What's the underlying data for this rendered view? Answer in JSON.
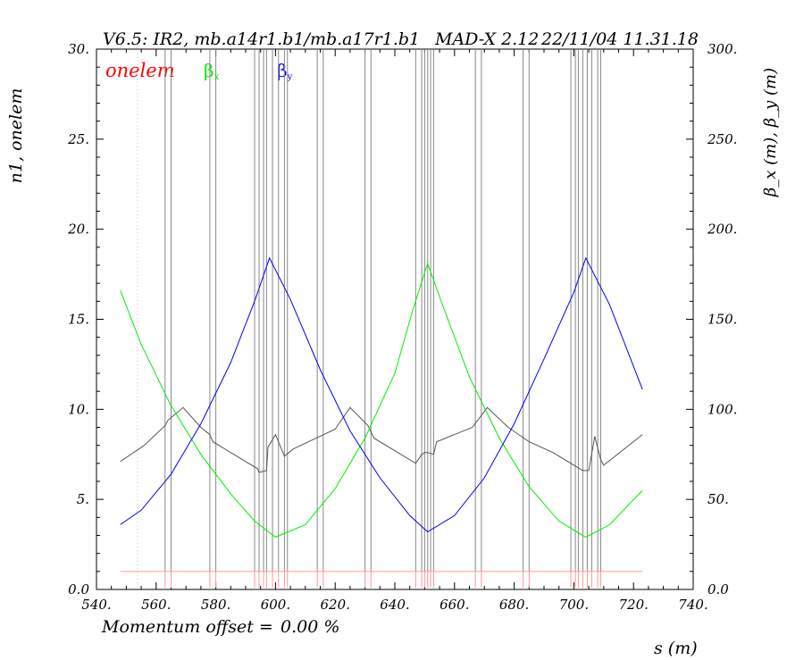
{
  "header": {
    "version": "V6.5: IR2, mb.a14r1.b1/mb.a17r1.b1",
    "program": "MAD-X 2.12",
    "timestamp": "22/11/04 11.31.18"
  },
  "footer": {
    "momentum_label": "Momentum offset =",
    "momentum_value": "0.00 %"
  },
  "colors": {
    "onelem": "#ff0000",
    "betx": "#00ee00",
    "bety": "#0000ee",
    "n1": "#555555",
    "aperture": "#ff9999"
  },
  "chart_data": {
    "type": "line",
    "x": {
      "label": "s (m)",
      "range": [
        540,
        740
      ],
      "ticks": [
        "540.",
        "560.",
        "580.",
        "600.",
        "620.",
        "640.",
        "660.",
        "680.",
        "700.",
        "720.",
        "740."
      ]
    },
    "y_left": {
      "label": "n1, onelem",
      "range": [
        0,
        30
      ],
      "ticks": [
        "0.0",
        "5.",
        "10.",
        "15.",
        "20.",
        "25.",
        "30."
      ]
    },
    "y_right": {
      "label": "β_x (m), β_y (m)",
      "range": [
        0,
        300
      ],
      "ticks": [
        "0.0",
        "50.",
        "100.",
        "150.",
        "200.",
        "250.",
        "300."
      ]
    },
    "legend": {
      "onelem": "onelem",
      "betx_symbol": "β",
      "betx_sub": "x",
      "bety_symbol": "β",
      "bety_sub": "y"
    },
    "series": [
      {
        "name": "βx",
        "axis": "right",
        "x": [
          548,
          555,
          565,
          575,
          585,
          593,
          600,
          610,
          620,
          630,
          640,
          646,
          651,
          656,
          665,
          675,
          685,
          695,
          704,
          712,
          723
        ],
        "y": [
          166,
          136,
          102,
          75,
          53,
          38,
          29,
          36,
          56,
          84,
          120,
          155,
          181,
          158,
          118,
          84,
          57,
          38,
          29,
          36,
          55
        ]
      },
      {
        "name": "βy",
        "axis": "right",
        "x": [
          548,
          555,
          565,
          575,
          585,
          593,
          598,
          605,
          615,
          625,
          635,
          645,
          651,
          660,
          670,
          680,
          690,
          700,
          704,
          712,
          723
        ],
        "y": [
          36,
          44,
          64,
          92,
          126,
          160,
          184,
          161,
          122,
          88,
          62,
          41,
          32,
          41,
          62,
          92,
          128,
          165,
          184,
          158,
          111
        ]
      },
      {
        "name": "n1",
        "axis": "left",
        "x": [
          548,
          556,
          563,
          564,
          569,
          575,
          578,
          579,
          594,
          594.5,
          597,
          597.5,
          600,
          603,
          606,
          620,
          625,
          631,
          633,
          647,
          649,
          650,
          651,
          653,
          654,
          666,
          671,
          678,
          685,
          693,
          702,
          703,
          705,
          707,
          709,
          710,
          723
        ],
        "y": [
          7.1,
          8.0,
          9.1,
          9.4,
          10.1,
          9.0,
          8.6,
          8.2,
          6.7,
          6.5,
          6.6,
          7.9,
          8.6,
          7.4,
          7.8,
          8.9,
          10.1,
          9.1,
          8.4,
          7.0,
          7.5,
          7.6,
          7.6,
          7.5,
          8.2,
          9.0,
          10.1,
          9.0,
          8.2,
          7.6,
          6.7,
          6.6,
          6.6,
          8.5,
          7.2,
          6.9,
          8.6
        ]
      },
      {
        "name": "onelem",
        "axis": "left",
        "x": [
          548,
          723
        ],
        "y": [
          1.0,
          1.0
        ]
      }
    ],
    "element_boundaries": [
      563,
      565,
      578,
      580,
      593,
      594.5,
      596,
      597,
      599,
      601,
      603,
      604,
      614,
      616,
      630,
      632,
      647,
      649,
      650,
      651,
      652,
      653,
      667,
      669,
      683,
      685,
      699,
      700.5,
      701.5,
      703,
      704.5,
      706,
      708,
      709
    ],
    "grid": false,
    "legend_position": "top-left"
  }
}
